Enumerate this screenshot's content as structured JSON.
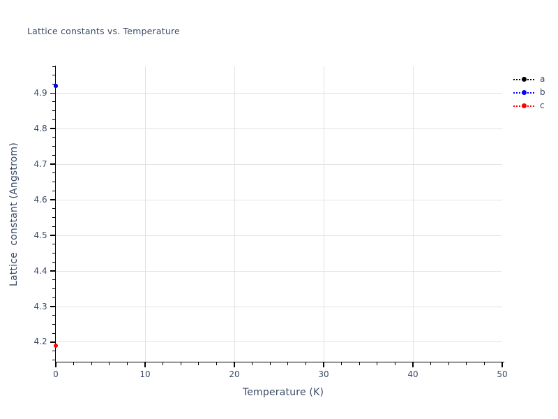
{
  "chart_data": {
    "type": "scatter",
    "title": "Lattice constants vs. Temperature",
    "xlabel": "Temperature (K)",
    "ylabel": "Lattice  constant (Angstrom)",
    "xlim": [
      0,
      50
    ],
    "ylim": [
      4.145,
      4.975
    ],
    "x_major_ticks": [
      0,
      10,
      20,
      30,
      40,
      50
    ],
    "x_tick_labels": [
      "0",
      "10",
      "20",
      "30",
      "40",
      "50"
    ],
    "x_minor_tick_step": 2,
    "y_major_ticks": [
      4.2,
      4.3,
      4.4,
      4.5,
      4.6,
      4.7,
      4.8,
      4.9
    ],
    "y_tick_labels": [
      "4.2",
      "4.3",
      "4.4",
      "4.5",
      "4.6",
      "4.7",
      "4.8",
      "4.9"
    ],
    "y_minor_tick_step": 0.025,
    "grid": true,
    "legend": {
      "position": "top-right",
      "entries": [
        "a",
        "b",
        "c"
      ]
    },
    "series": [
      {
        "name": "a",
        "color": "#000000",
        "marker": "circle",
        "line_style": "dotted",
        "x": [
          0
        ],
        "y": [
          4.92
        ]
      },
      {
        "name": "b",
        "color": "#0000ff",
        "marker": "circle",
        "line_style": "dotted",
        "x": [
          0
        ],
        "y": [
          4.92
        ]
      },
      {
        "name": "c",
        "color": "#ff0000",
        "marker": "circle",
        "line_style": "dotted",
        "x": [
          0
        ],
        "y": [
          4.19
        ]
      }
    ]
  },
  "colors": {
    "text": "#3a4a66",
    "axis": "#000000",
    "grid": "#e2e2e2",
    "background": "#ffffff"
  }
}
